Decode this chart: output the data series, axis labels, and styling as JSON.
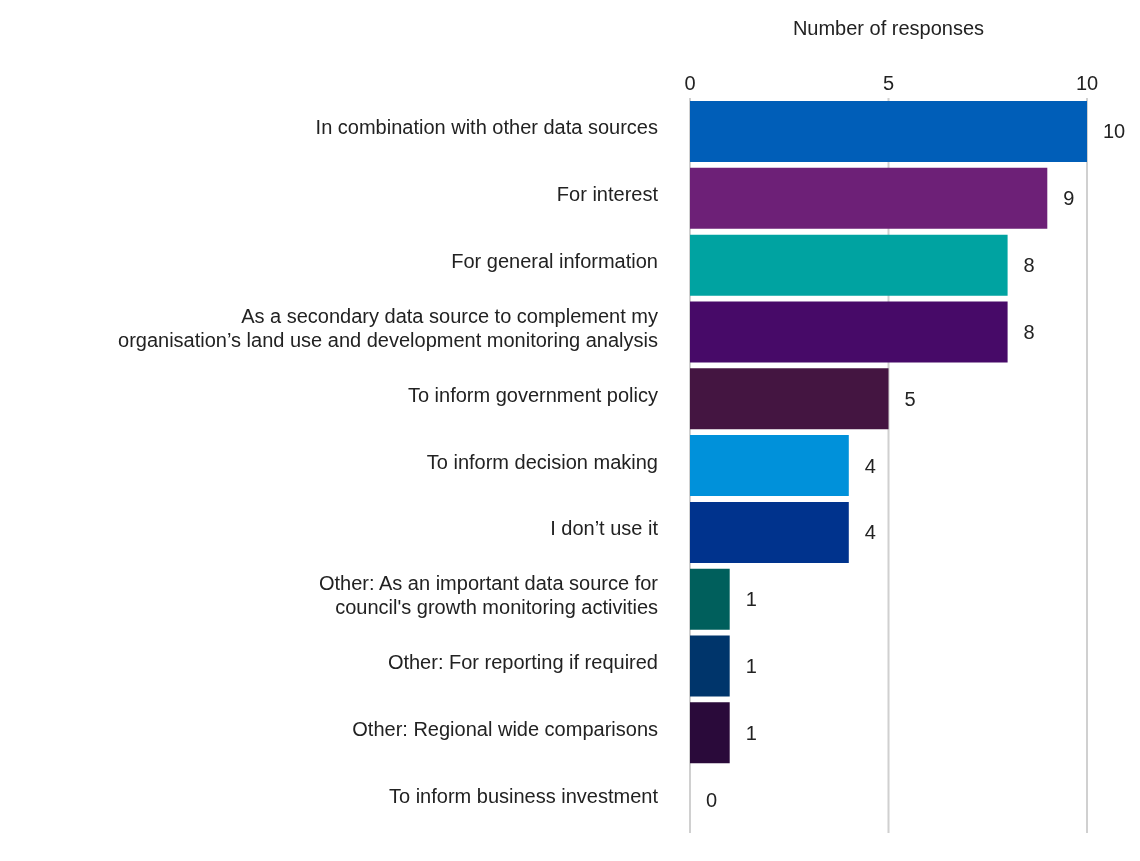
{
  "chart_data": {
    "type": "bar",
    "orientation": "horizontal",
    "xlabel": "Number of responses",
    "categories": [
      "In combination with other data sources",
      "For interest",
      "For general information",
      "As a secondary data source to complement my organisation’s land use and development monitoring analysis",
      "To inform government policy",
      "To inform decision making",
      "I don’t use it",
      "Other: As an important data source for council's growth monitoring activities",
      "Other: For reporting if required",
      "Other: Regional wide comparisons",
      "To inform business investment"
    ],
    "values": [
      10,
      9,
      8,
      8,
      5,
      4,
      4,
      1,
      1,
      1,
      0
    ],
    "colors": [
      "#005eb8",
      "#6d2077",
      "#00a3a1",
      "#470a68",
      "#441541",
      "#0091da",
      "#00338d",
      "#005f5c",
      "#00356b",
      "#2a0a3a",
      "#2a0a3a"
    ],
    "xlim": [
      0,
      10
    ],
    "xticks": [
      0,
      5,
      10
    ],
    "grid": "x",
    "data_labels": true
  }
}
